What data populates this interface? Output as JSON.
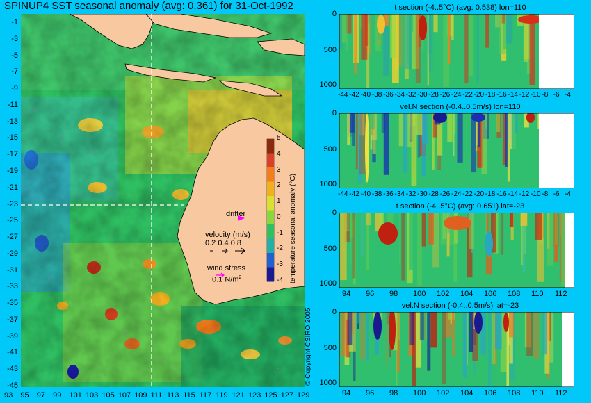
{
  "title": "SPINUP4 SST seasonal anomaly (avg: 0.361) for 31-Oct-1992",
  "map": {
    "lat_labels": [
      "-1",
      "-3",
      "-5",
      "-7",
      "-9",
      "-11",
      "-13",
      "-15",
      "-17",
      "-19",
      "-21",
      "-23",
      "-25",
      "-27",
      "-29",
      "-31",
      "-33",
      "-35",
      "-37",
      "-39",
      "-41",
      "-43",
      "-45"
    ],
    "lon_labels": [
      "93",
      "95",
      "97",
      "99",
      "101",
      "103",
      "105",
      "107",
      "109",
      "111",
      "113",
      "115",
      "117",
      "119",
      "121",
      "123",
      "125",
      "127",
      "129"
    ],
    "colorbar": {
      "ticks": [
        "5",
        "4",
        "3",
        "2",
        "1",
        "0",
        "-1",
        "-2",
        "-3",
        "-4"
      ],
      "label": "temperature seasonal anomaly (°C)",
      "colors": [
        "#8b2a0c",
        "#d8402a",
        "#f47c1c",
        "#f0b020",
        "#d8e030",
        "#8ad840",
        "#30c060",
        "#20b0a8",
        "#2060d0",
        "#1a1a90"
      ]
    },
    "legend": {
      "drifter_label": "drifter",
      "velocity_label": "velocity (m/s)",
      "velocity_values": "0.2 0.4 0.8",
      "wind_label": "wind stress",
      "wind_value": "0.1 N/m",
      "wind_sup": "2"
    },
    "copyright": "© Copyright CSIRO 2005"
  },
  "panels": [
    {
      "title": "t section (-4..5°C) (avg: 0.538) lon=110",
      "yticks": [
        "0",
        "500",
        "1000"
      ],
      "xticks": [
        "-44",
        "-42",
        "-40",
        "-38",
        "-36",
        "-34",
        "-32",
        "-30",
        "-28",
        "-26",
        "-24",
        "-22",
        "-20",
        "-18",
        "-16",
        "-14",
        "-12",
        "-10",
        "-8",
        "-6",
        "-4"
      ]
    },
    {
      "title": "vel.N section (-0.4..0.5m/s) lon=110",
      "yticks": [
        "0",
        "500",
        "1000"
      ],
      "xticks": [
        "-44",
        "-42",
        "-40",
        "-38",
        "-36",
        "-34",
        "-32",
        "-30",
        "-28",
        "-26",
        "-24",
        "-22",
        "-20",
        "-18",
        "-16",
        "-14",
        "-12",
        "-10",
        "-8",
        "-6",
        "-4"
      ]
    },
    {
      "title": "t section (-4..5°C) (avg: 0.651) lat=-23",
      "yticks": [
        "0",
        "500",
        "1000"
      ],
      "xticks": [
        "94",
        "96",
        "98",
        "100",
        "102",
        "104",
        "106",
        "108",
        "110",
        "112"
      ]
    },
    {
      "title": "vel.N section (-0.4..0.5m/s) lat=-23",
      "yticks": [
        "0",
        "500",
        "1000"
      ],
      "xticks": [
        "94",
        "96",
        "98",
        "100",
        "102",
        "104",
        "106",
        "108",
        "110",
        "112"
      ]
    }
  ]
}
